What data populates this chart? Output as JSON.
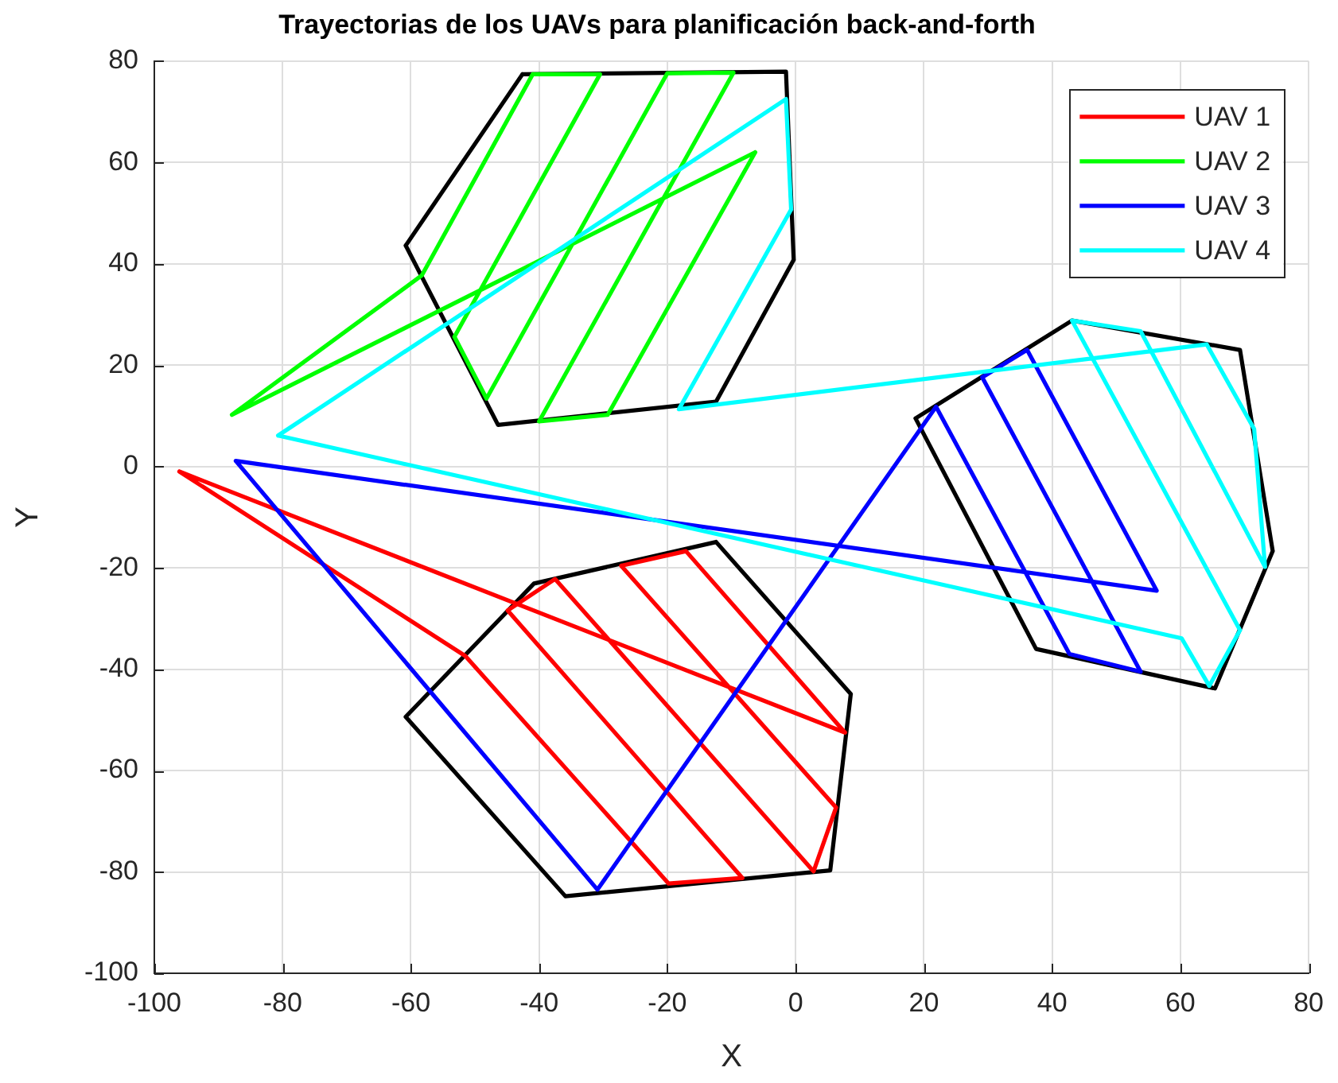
{
  "chart_data": {
    "type": "line",
    "title": "Trayectorias de los UAVs para planificación back-and-forth",
    "xlabel": "X",
    "ylabel": "Y",
    "xlim": [
      -100,
      80
    ],
    "ylim": [
      -100,
      80
    ],
    "xticks": [
      -100,
      -80,
      -60,
      -40,
      -20,
      0,
      20,
      40,
      60,
      80
    ],
    "yticks": [
      -100,
      -80,
      -60,
      -40,
      -20,
      0,
      20,
      40,
      60,
      80
    ],
    "grid": true,
    "legend": "top right",
    "marker": "none",
    "series": [
      {
        "color": "#000000",
        "x": [
          -42.6,
          -1.5,
          -0.3,
          -12.4,
          -46.4,
          -60.8,
          -42.6
        ],
        "values": [
          77.4,
          77.9,
          40.8,
          12.8,
          8.2,
          43.6,
          77.4
        ]
      },
      {
        "color": "#000000",
        "x": [
          -12.4,
          8.6,
          5.4,
          -35.9,
          -60.8,
          -40.8,
          -12.4
        ],
        "values": [
          -14.9,
          -44.9,
          -79.7,
          -84.8,
          -49.4,
          -23.1,
          -14.9
        ]
      },
      {
        "color": "#000000",
        "x": [
          43.1,
          69.3,
          74.4,
          65.4,
          37.5,
          18.7,
          43.1
        ],
        "values": [
          28.8,
          23.0,
          -16.7,
          -43.8,
          -36.0,
          9.5,
          28.8
        ]
      },
      {
        "name": "UAV 1",
        "color": "#ff0000",
        "x": [
          -96.1,
          -51.5,
          -19.8,
          -8.3,
          -44.9,
          -37.5,
          2.8,
          6.3,
          -27.2,
          -17.1,
          7.7,
          -96.1
        ],
        "values": [
          -1.0,
          -37.4,
          -82.3,
          -81.2,
          -28.4,
          -22.2,
          -79.9,
          -67.3,
          -19.6,
          -16.7,
          -52.5,
          -1.0
        ]
      },
      {
        "name": "UAV 2",
        "color": "#00ff00",
        "x": [
          -87.9,
          -58.3,
          -41.0,
          -30.5,
          -53.2,
          -48.2,
          -20.0,
          -9.7,
          -40.0,
          -29.3,
          -6.3,
          -87.9
        ],
        "values": [
          10.2,
          37.7,
          77.4,
          77.4,
          25.6,
          13.4,
          77.6,
          77.7,
          8.9,
          10.2,
          62.0,
          10.2
        ]
      },
      {
        "name": "UAV 3",
        "color": "#0000ff",
        "x": [
          -87.3,
          -30.9,
          21.9,
          42.7,
          53.8,
          29.1,
          36.1,
          56.3,
          -87.3
        ],
        "values": [
          1.1,
          -83.5,
          11.8,
          -37.0,
          -40.5,
          17.6,
          23.0,
          -24.5,
          1.1
        ]
      },
      {
        "name": "UAV 4",
        "color": "#00ffff",
        "x": [
          -80.7,
          -1.5,
          -0.7,
          -18.2,
          64.1,
          71.5,
          73.2,
          53.8,
          43.1,
          69.3,
          64.5,
          60.2,
          -80.7
        ],
        "values": [
          6.1,
          72.5,
          50.7,
          11.3,
          24.1,
          7.4,
          -19.8,
          26.7,
          28.8,
          -32.3,
          -43.3,
          -33.9,
          6.1
        ]
      }
    ]
  }
}
